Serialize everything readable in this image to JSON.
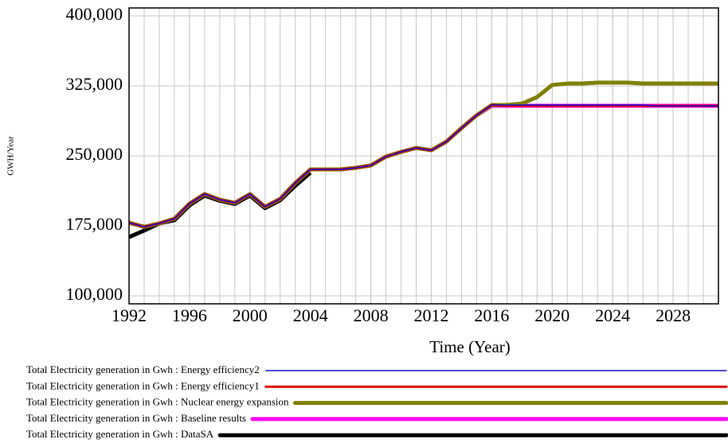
{
  "chart_data": {
    "type": "line",
    "xlabel": "Time (Year)",
    "ylabel": "GWH/Year",
    "x": [
      1992,
      1993,
      1994,
      1995,
      1996,
      1997,
      1998,
      1999,
      2000,
      2001,
      2002,
      2003,
      2004,
      2005,
      2006,
      2007,
      2008,
      2009,
      2010,
      2011,
      2012,
      2013,
      2014,
      2015,
      2016,
      2017,
      2018,
      2019,
      2020,
      2021,
      2022,
      2023,
      2024,
      2025,
      2026,
      2027,
      2028,
      2029,
      2030,
      2031
    ],
    "xlim": [
      1992,
      2031
    ],
    "xticks": [
      1992,
      1996,
      2000,
      2004,
      2008,
      2012,
      2016,
      2020,
      2024,
      2028
    ],
    "ylim": [
      91500,
      408500
    ],
    "yticks": [
      {
        "value": 100000,
        "label": "100,000"
      },
      {
        "value": 175000,
        "label": "175,000"
      },
      {
        "value": 250000,
        "label": "250,000"
      },
      {
        "value": 325000,
        "label": "325,000"
      },
      {
        "value": 400000,
        "label": "400,000"
      }
    ],
    "grid": true,
    "series": [
      {
        "name": "Total Electricity generation in Gwh : Energy efficiency2",
        "color": "#1010d0",
        "line_width": 1.5,
        "values": [
          178400,
          174000,
          177600,
          182700,
          198900,
          209100,
          203100,
          199700,
          209100,
          195500,
          204000,
          221000,
          235500,
          235500,
          235500,
          237200,
          239800,
          249200,
          254300,
          258500,
          256000,
          265300,
          279800,
          293500,
          304500,
          304500,
          304500,
          304500,
          304500,
          304500,
          304500,
          304500,
          304500,
          304500,
          304500,
          303500,
          303500,
          303500,
          303500,
          303500
        ]
      },
      {
        "name": "Total Electricity generation in Gwh : Energy efficiency1",
        "color": "#e00000",
        "line_width": 3,
        "values": [
          178400,
          174000,
          177600,
          182700,
          198900,
          209100,
          203100,
          199700,
          209100,
          195500,
          204000,
          221000,
          235500,
          235500,
          235500,
          237200,
          239800,
          249200,
          254300,
          258500,
          256000,
          265300,
          279800,
          293500,
          304500,
          303700,
          303700,
          303700,
          303700,
          303700,
          303700,
          303700,
          303700,
          303700,
          303700,
          303700,
          303700,
          303700,
          303700,
          303700
        ]
      },
      {
        "name": "Total Electricity generation in Gwh : Nuclear energy expansion",
        "color": "#808000",
        "line_width": 5,
        "values": [
          178400,
          174000,
          177600,
          182700,
          198900,
          209100,
          203100,
          199700,
          209100,
          195500,
          204000,
          221000,
          235500,
          235500,
          235500,
          237200,
          239800,
          249200,
          254300,
          258500,
          256000,
          265300,
          279800,
          293500,
          304500,
          304500,
          306000,
          313000,
          326000,
          327500,
          327500,
          328500,
          328500,
          328500,
          327500,
          327500,
          327500,
          327500,
          327500,
          327500
        ]
      },
      {
        "name": "Total Electricity generation in Gwh : Baseline results",
        "color": "#ff00ff",
        "line_width": 5,
        "values": [
          178400,
          174000,
          177600,
          182700,
          198900,
          209100,
          203100,
          199700,
          209100,
          195500,
          204000,
          221000,
          235500,
          235500,
          235500,
          237200,
          239800,
          249200,
          254300,
          258500,
          256000,
          265300,
          279800,
          293500,
          303700,
          303700,
          303700,
          303700,
          303700,
          303700,
          303700,
          303700,
          303700,
          303700,
          303700,
          303700,
          303700,
          303700,
          303700,
          303700
        ]
      },
      {
        "name": "Total Electricity generation in Gwh : DataSA",
        "color": "#000000",
        "line_width": 5,
        "values": [
          163000,
          170000,
          177600,
          181000,
          197000,
          207500,
          202000,
          198500,
          207500,
          194000,
          202500,
          218000,
          232000,
          null,
          null,
          null,
          null,
          null,
          null,
          null,
          null,
          null,
          null,
          null,
          null,
          null,
          null,
          null,
          null,
          null,
          null,
          null,
          null,
          null,
          null,
          null,
          null,
          null,
          null,
          null
        ]
      }
    ]
  }
}
